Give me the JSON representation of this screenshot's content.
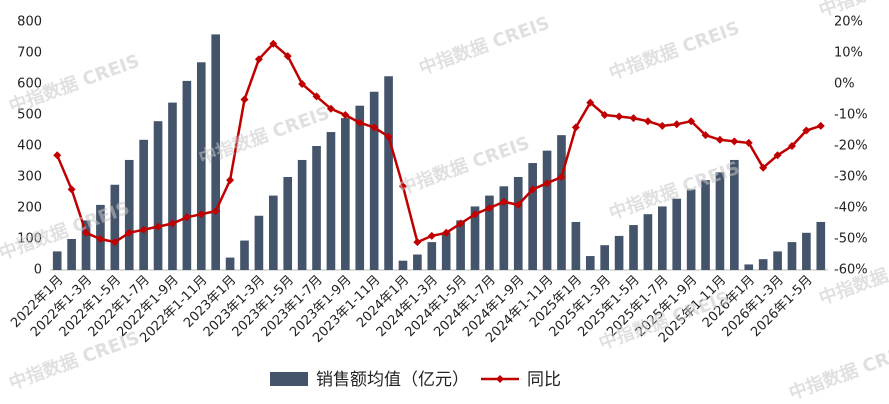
{
  "chart_data": {
    "type": "bar-line",
    "watermark": "中指数据 CREIS",
    "categories": [
      "2022年1月",
      null,
      "2022年1-3月",
      null,
      "2022年1-5月",
      null,
      "2022年1-7月",
      null,
      "2022年1-9月",
      null,
      "2022年1-11月",
      null,
      "2023年1月",
      null,
      "2023年1-3月",
      null,
      "2023年1-5月",
      null,
      "2023年1-7月",
      null,
      "2023年1-9月",
      null,
      "2023年1-11月",
      null,
      "2024年1月",
      null,
      "2024年1-3月",
      null,
      "2024年1-5月",
      null,
      "2024年1-7月",
      null,
      "2024年1-9月",
      null,
      "2024年1-11月",
      null,
      "2025年1月",
      null,
      "2025年1-3月",
      null,
      "2025年1-5月",
      null,
      "2025年1-7月",
      null,
      "2025年1-9月",
      null,
      "2025年1-11月",
      null,
      "2026年1月",
      null,
      "2026年1-3月",
      null,
      "2026年1-5月",
      null
    ],
    "series": [
      {
        "name": "销售额均值（亿元）",
        "type": "bar",
        "color": "#44546a",
        "values": [
          60,
          100,
          160,
          210,
          275,
          355,
          420,
          480,
          540,
          610,
          670,
          760,
          40,
          95,
          175,
          240,
          300,
          355,
          400,
          445,
          490,
          530,
          575,
          625,
          30,
          50,
          90,
          120,
          160,
          205,
          240,
          270,
          300,
          345,
          385,
          435,
          155,
          45,
          80,
          110,
          145,
          180,
          205,
          230,
          260,
          290,
          315,
          355,
          18,
          35,
          60,
          90,
          120,
          155
        ]
      },
      {
        "name": "同比",
        "type": "line",
        "axis": "y2",
        "color": "#c00000",
        "values": [
          -23,
          -34,
          -48,
          -50,
          -51,
          -48,
          -47,
          -46,
          -45,
          -43,
          -42,
          -41,
          -31,
          -5,
          8,
          13,
          9,
          0,
          -4,
          -8,
          -10,
          -12.5,
          -14,
          -17,
          -33,
          -51,
          -49,
          -48,
          -45,
          -42,
          -40,
          -38,
          -39,
          -34,
          -32,
          -30,
          -14,
          -6,
          -10,
          -10.5,
          -11,
          -12,
          -13.5,
          -13,
          -12,
          -16.5,
          -18,
          -18.5,
          -19,
          -27,
          -23,
          -20,
          -15,
          -13.5
        ]
      }
    ],
    "ylim": [
      0,
      800
    ],
    "yticks": [
      0,
      100,
      200,
      300,
      400,
      500,
      600,
      700,
      800
    ],
    "y2lim": [
      -60,
      20
    ],
    "y2ticks": [
      {
        "value": 20,
        "label": "20%"
      },
      {
        "value": 10,
        "label": "10%"
      },
      {
        "value": 0,
        "label": "0%"
      },
      {
        "value": -10,
        "label": "-10%"
      },
      {
        "value": -20,
        "label": "-20%"
      },
      {
        "value": -30,
        "label": "-30%"
      },
      {
        "value": -40,
        "label": "-40%"
      },
      {
        "value": -50,
        "label": "-50%"
      },
      {
        "value": -60,
        "label": "-60%"
      }
    ]
  }
}
